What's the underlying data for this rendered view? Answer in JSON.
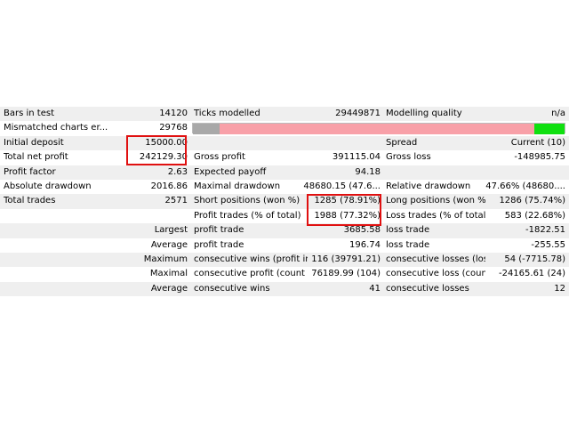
{
  "table": {
    "rows": [
      {
        "label1": "Bars in test",
        "value1": "14120",
        "label2": "Ticks modelled",
        "value2": "29449871",
        "label3": "Modelling quality",
        "value3": "n/a"
      },
      {
        "label1": "Mismatched charts er...",
        "value1": "29768"
      },
      {
        "label1": "Initial deposit",
        "value1": "15000.00",
        "label3": "Spread",
        "value3": "Current (10)"
      },
      {
        "label1": "Total net profit",
        "value1": "242129.30",
        "label2": "Gross profit",
        "value2": "391115.04",
        "label3": "Gross loss",
        "value3": "-148985.75"
      },
      {
        "label1": "Profit factor",
        "value1": "2.63",
        "label2": "Expected payoff",
        "value2": "94.18"
      },
      {
        "label1": "Absolute drawdown",
        "value1": "2016.86",
        "label2": "Maximal drawdown",
        "value2": "48680.15 (47.6...",
        "label3": "Relative drawdown",
        "value3": "47.66% (48680...."
      },
      {
        "label1": "Total trades",
        "value1": "2571",
        "label2": "Short positions (won %)",
        "value2": "1285 (78.91%)",
        "label3": "Long positions (won %)",
        "value3": "1286 (75.74%)"
      },
      {
        "label2": "Profit trades (% of total)",
        "value2": "1988 (77.32%)",
        "label3": "Loss trades (% of total)",
        "value3": "583 (22.68%)"
      },
      {
        "value1": "Largest",
        "label2": "profit trade",
        "value2": "3685.58",
        "label3": "loss trade",
        "value3": "-1822.51"
      },
      {
        "value1": "Average",
        "label2": "profit trade",
        "value2": "196.74",
        "label3": "loss trade",
        "value3": "-255.55"
      },
      {
        "value1": "Maximum",
        "label2": "consecutive wins (profit in...",
        "value2": "116 (39791.21)",
        "label3": "consecutive losses (loss in...",
        "value3": "54 (-7715.78)"
      },
      {
        "value1": "Maximal",
        "label2": "consecutive profit (count ...",
        "value2": "76189.99 (104)",
        "label3": "consecutive loss (count of...",
        "value3": "-24165.61 (24)"
      },
      {
        "value1": "Average",
        "label2": "consecutive wins",
        "value2": "41",
        "label3": "consecutive losses",
        "value3": "12"
      }
    ]
  }
}
